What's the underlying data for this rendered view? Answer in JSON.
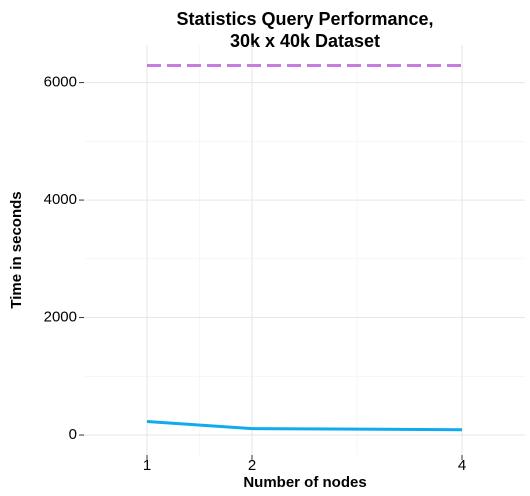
{
  "chart_data": {
    "type": "line",
    "title": [
      "Statistics Query Performance,",
      "30k x 40k Dataset"
    ],
    "x_label": "Number of nodes",
    "y_label": "Time in seconds",
    "x": [
      1,
      2,
      4
    ],
    "series": [
      {
        "color": "#11aaee",
        "values": [
          230,
          110,
          90
        ],
        "dashed": false
      },
      {
        "color": "#c77ce0",
        "values": [
          6290,
          6290,
          6290
        ],
        "dashed": true
      }
    ],
    "xlim": [
      0.4,
      4.6
    ],
    "ylim": [
      -340,
      6640
    ],
    "xticks": [
      1,
      2,
      4
    ],
    "yticks": [
      0,
      2000,
      4000,
      6000
    ],
    "grid": true
  }
}
